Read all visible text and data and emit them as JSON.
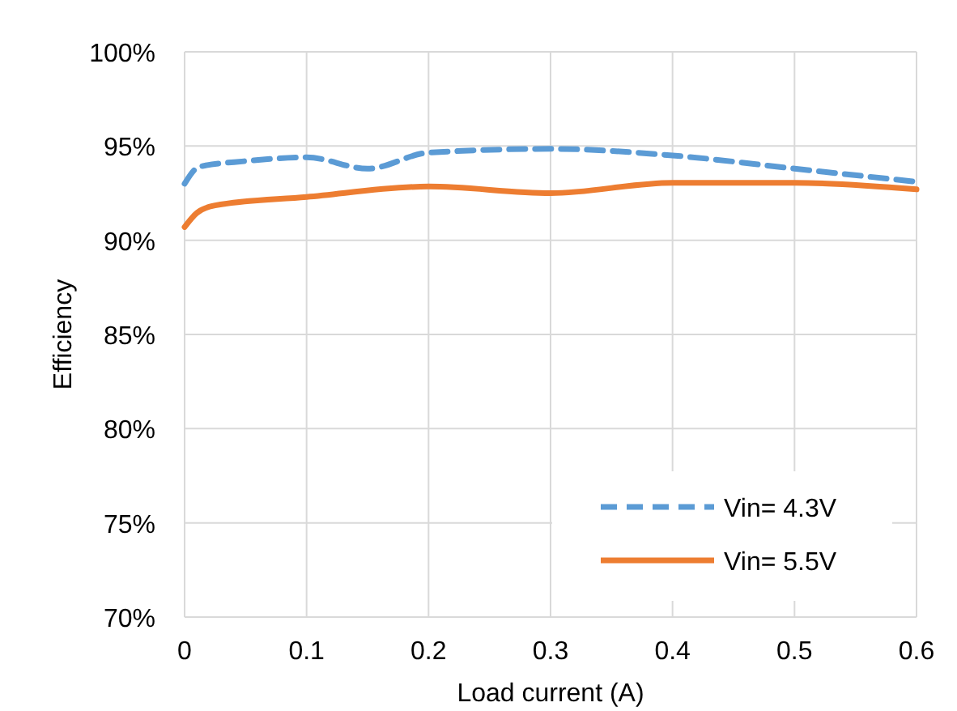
{
  "chart_data": {
    "type": "line",
    "xlabel": "Load current (A)",
    "ylabel": "Efficiency",
    "xlim": [
      0,
      0.6
    ],
    "xticks": [
      0,
      0.1,
      0.2,
      0.3,
      0.4,
      0.5,
      0.6
    ],
    "ylim": [
      70,
      100
    ],
    "yticks": [
      {
        "value": 70,
        "label": "70%"
      },
      {
        "value": 75,
        "label": "75%"
      },
      {
        "value": 80,
        "label": "80%"
      },
      {
        "value": 85,
        "label": "85%"
      },
      {
        "value": 90,
        "label": "90%"
      },
      {
        "value": 95,
        "label": "95%"
      },
      {
        "value": 100,
        "label": "100%"
      }
    ],
    "grid": true,
    "legend": "bottom right",
    "marker": "none",
    "series": [
      {
        "name": "Vin= 4.3V",
        "color": "#5b9bd5",
        "line_style": "dashed",
        "x": [
          0,
          0.012,
          0.05,
          0.1,
          0.15,
          0.2,
          0.3,
          0.4,
          0.5,
          0.6
        ],
        "values": [
          93.0,
          93.9,
          94.2,
          94.4,
          93.8,
          94.65,
          94.85,
          94.5,
          93.8,
          93.1
        ]
      },
      {
        "name": "Vin= 5.5V",
        "color": "#ed7d31",
        "line_style": "solid",
        "x": [
          0,
          0.01,
          0.025,
          0.1,
          0.2,
          0.3,
          0.4,
          0.5,
          0.6
        ],
        "values": [
          90.7,
          91.45,
          91.85,
          92.3,
          92.85,
          92.5,
          93.05,
          93.05,
          92.7
        ]
      }
    ]
  }
}
